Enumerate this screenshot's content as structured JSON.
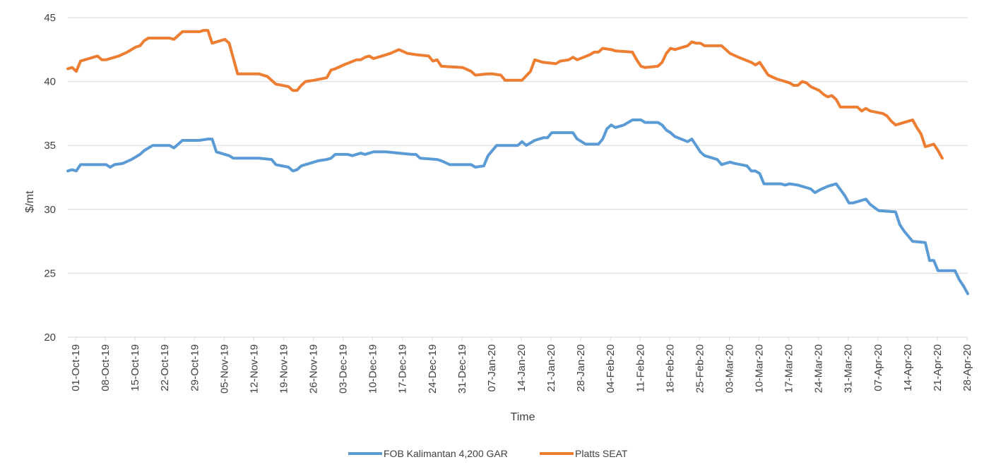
{
  "chart_data": {
    "type": "line",
    "title": "",
    "xlabel": "Time",
    "ylabel": "$/mt",
    "ylim": [
      20,
      45
    ],
    "yticks": [
      "20",
      "25",
      "30",
      "35",
      "40",
      "45"
    ],
    "grid": "horizontal",
    "legend_position": "bottom",
    "x_tick_labels": [
      "01-Oct-19",
      "08-Oct-19",
      "15-Oct-19",
      "22-Oct-19",
      "29-Oct-19",
      "05-Nov-19",
      "12-Nov-19",
      "19-Nov-19",
      "26-Nov-19",
      "03-Dec-19",
      "10-Dec-19",
      "17-Dec-19",
      "24-Dec-19",
      "31-Dec-19",
      "07-Jan-20",
      "14-Jan-20",
      "21-Jan-20",
      "28-Jan-20",
      "04-Feb-20",
      "11-Feb-20",
      "18-Feb-20",
      "25-Feb-20",
      "03-Mar-20",
      "10-Mar-20",
      "17-Mar-20",
      "24-Mar-20",
      "31-Mar-20",
      "07-Apr-20",
      "14-Apr-20",
      "21-Apr-20",
      "28-Apr-20"
    ],
    "x_start": "2019-10-01",
    "x_end": "2020-04-30",
    "series": [
      {
        "name": "FOB Kalimantan 4,200 GAR",
        "color": "#5b9bd5",
        "points": [
          [
            "2019-10-01",
            33.0
          ],
          [
            "2019-10-02",
            33.1
          ],
          [
            "2019-10-03",
            33.0
          ],
          [
            "2019-10-04",
            33.5
          ],
          [
            "2019-10-07",
            33.5
          ],
          [
            "2019-10-10",
            33.5
          ],
          [
            "2019-10-11",
            33.3
          ],
          [
            "2019-10-12",
            33.5
          ],
          [
            "2019-10-14",
            33.6
          ],
          [
            "2019-10-16",
            33.9
          ],
          [
            "2019-10-18",
            34.3
          ],
          [
            "2019-10-19",
            34.6
          ],
          [
            "2019-10-21",
            35.0
          ],
          [
            "2019-10-25",
            35.0
          ],
          [
            "2019-10-26",
            34.8
          ],
          [
            "2019-10-28",
            35.4
          ],
          [
            "2019-11-01",
            35.4
          ],
          [
            "2019-11-03",
            35.5
          ],
          [
            "2019-11-04",
            35.5
          ],
          [
            "2019-11-05",
            34.5
          ],
          [
            "2019-11-07",
            34.3
          ],
          [
            "2019-11-08",
            34.2
          ],
          [
            "2019-11-09",
            34.0
          ],
          [
            "2019-11-15",
            34.0
          ],
          [
            "2019-11-18",
            33.9
          ],
          [
            "2019-11-19",
            33.5
          ],
          [
            "2019-11-22",
            33.3
          ],
          [
            "2019-11-23",
            33.0
          ],
          [
            "2019-11-24",
            33.1
          ],
          [
            "2019-11-25",
            33.4
          ],
          [
            "2019-11-27",
            33.6
          ],
          [
            "2019-11-29",
            33.8
          ],
          [
            "2019-12-01",
            33.9
          ],
          [
            "2019-12-02",
            34.0
          ],
          [
            "2019-12-03",
            34.3
          ],
          [
            "2019-12-06",
            34.3
          ],
          [
            "2019-12-07",
            34.2
          ],
          [
            "2019-12-09",
            34.4
          ],
          [
            "2019-12-10",
            34.3
          ],
          [
            "2019-12-12",
            34.5
          ],
          [
            "2019-12-15",
            34.5
          ],
          [
            "2019-12-18",
            34.4
          ],
          [
            "2019-12-21",
            34.3
          ],
          [
            "2019-12-22",
            34.3
          ],
          [
            "2019-12-23",
            34.0
          ],
          [
            "2019-12-27",
            33.9
          ],
          [
            "2019-12-28",
            33.8
          ],
          [
            "2019-12-30",
            33.5
          ],
          [
            "2020-01-04",
            33.5
          ],
          [
            "2020-01-05",
            33.3
          ],
          [
            "2020-01-07",
            33.4
          ],
          [
            "2020-01-08",
            34.2
          ],
          [
            "2020-01-10",
            35.0
          ],
          [
            "2020-01-14",
            35.0
          ],
          [
            "2020-01-15",
            35.0
          ],
          [
            "2020-01-16",
            35.3
          ],
          [
            "2020-01-17",
            35.0
          ],
          [
            "2020-01-19",
            35.4
          ],
          [
            "2020-01-21",
            35.6
          ],
          [
            "2020-01-22",
            35.6
          ],
          [
            "2020-01-23",
            36.0
          ],
          [
            "2020-01-28",
            36.0
          ],
          [
            "2020-01-29",
            35.5
          ],
          [
            "2020-01-31",
            35.1
          ],
          [
            "2020-02-03",
            35.1
          ],
          [
            "2020-02-04",
            35.5
          ],
          [
            "2020-02-05",
            36.3
          ],
          [
            "2020-02-06",
            36.6
          ],
          [
            "2020-02-07",
            36.4
          ],
          [
            "2020-02-09",
            36.6
          ],
          [
            "2020-02-10",
            36.8
          ],
          [
            "2020-02-11",
            37.0
          ],
          [
            "2020-02-13",
            37.0
          ],
          [
            "2020-02-14",
            36.8
          ],
          [
            "2020-02-17",
            36.8
          ],
          [
            "2020-02-18",
            36.6
          ],
          [
            "2020-02-19",
            36.2
          ],
          [
            "2020-02-20",
            36.0
          ],
          [
            "2020-02-21",
            35.7
          ],
          [
            "2020-02-24",
            35.3
          ],
          [
            "2020-02-25",
            35.5
          ],
          [
            "2020-02-26",
            35.0
          ],
          [
            "2020-02-27",
            34.5
          ],
          [
            "2020-02-28",
            34.2
          ],
          [
            "2020-03-02",
            33.9
          ],
          [
            "2020-03-03",
            33.5
          ],
          [
            "2020-03-04",
            33.6
          ],
          [
            "2020-03-05",
            33.7
          ],
          [
            "2020-03-06",
            33.6
          ],
          [
            "2020-03-09",
            33.4
          ],
          [
            "2020-03-10",
            33.0
          ],
          [
            "2020-03-11",
            33.0
          ],
          [
            "2020-03-12",
            32.8
          ],
          [
            "2020-03-13",
            32.0
          ],
          [
            "2020-03-17",
            32.0
          ],
          [
            "2020-03-18",
            31.9
          ],
          [
            "2020-03-19",
            32.0
          ],
          [
            "2020-03-21",
            31.9
          ],
          [
            "2020-03-24",
            31.6
          ],
          [
            "2020-03-25",
            31.3
          ],
          [
            "2020-03-26",
            31.5
          ],
          [
            "2020-03-28",
            31.8
          ],
          [
            "2020-03-30",
            32.0
          ],
          [
            "2020-04-01",
            31.1
          ],
          [
            "2020-04-02",
            30.5
          ],
          [
            "2020-04-03",
            30.5
          ],
          [
            "2020-04-06",
            30.8
          ],
          [
            "2020-04-07",
            30.4
          ],
          [
            "2020-04-09",
            29.9
          ],
          [
            "2020-04-13",
            29.8
          ],
          [
            "2020-04-14",
            28.8
          ],
          [
            "2020-04-15",
            28.3
          ],
          [
            "2020-04-16",
            27.9
          ],
          [
            "2020-04-17",
            27.5
          ],
          [
            "2020-04-20",
            27.4
          ],
          [
            "2020-04-21",
            26.0
          ],
          [
            "2020-04-22",
            26.0
          ],
          [
            "2020-04-23",
            25.2
          ],
          [
            "2020-04-27",
            25.2
          ],
          [
            "2020-04-28",
            24.5
          ],
          [
            "2020-04-29",
            24.0
          ],
          [
            "2020-04-30",
            23.4
          ]
        ]
      },
      {
        "name": "Platts SEAT",
        "color": "#ed7d31",
        "points": [
          [
            "2019-10-01",
            41.0
          ],
          [
            "2019-10-02",
            41.1
          ],
          [
            "2019-10-03",
            40.8
          ],
          [
            "2019-10-04",
            41.6
          ],
          [
            "2019-10-07",
            41.9
          ],
          [
            "2019-10-08",
            42.0
          ],
          [
            "2019-10-09",
            41.7
          ],
          [
            "2019-10-10",
            41.7
          ],
          [
            "2019-10-11",
            41.8
          ],
          [
            "2019-10-13",
            42.0
          ],
          [
            "2019-10-15",
            42.3
          ],
          [
            "2019-10-17",
            42.7
          ],
          [
            "2019-10-18",
            42.8
          ],
          [
            "2019-10-19",
            43.2
          ],
          [
            "2019-10-20",
            43.4
          ],
          [
            "2019-10-25",
            43.4
          ],
          [
            "2019-10-26",
            43.3
          ],
          [
            "2019-10-28",
            43.9
          ],
          [
            "2019-11-01",
            43.9
          ],
          [
            "2019-11-02",
            44.0
          ],
          [
            "2019-11-03",
            44.0
          ],
          [
            "2019-11-04",
            43.0
          ],
          [
            "2019-11-05",
            43.1
          ],
          [
            "2019-11-07",
            43.3
          ],
          [
            "2019-11-08",
            43.0
          ],
          [
            "2019-11-10",
            40.6
          ],
          [
            "2019-11-15",
            40.6
          ],
          [
            "2019-11-17",
            40.4
          ],
          [
            "2019-11-19",
            39.8
          ],
          [
            "2019-11-22",
            39.6
          ],
          [
            "2019-11-23",
            39.3
          ],
          [
            "2019-11-24",
            39.3
          ],
          [
            "2019-11-25",
            39.7
          ],
          [
            "2019-11-26",
            40.0
          ],
          [
            "2019-11-28",
            40.1
          ],
          [
            "2019-12-01",
            40.3
          ],
          [
            "2019-12-02",
            40.9
          ],
          [
            "2019-12-03",
            41.0
          ],
          [
            "2019-12-05",
            41.3
          ],
          [
            "2019-12-08",
            41.7
          ],
          [
            "2019-12-09",
            41.7
          ],
          [
            "2019-12-10",
            41.9
          ],
          [
            "2019-12-11",
            42.0
          ],
          [
            "2019-12-12",
            41.8
          ],
          [
            "2019-12-14",
            42.0
          ],
          [
            "2019-12-16",
            42.2
          ],
          [
            "2019-12-18",
            42.5
          ],
          [
            "2019-12-20",
            42.2
          ],
          [
            "2019-12-22",
            42.1
          ],
          [
            "2019-12-25",
            42.0
          ],
          [
            "2019-12-26",
            41.6
          ],
          [
            "2019-12-27",
            41.7
          ],
          [
            "2019-12-28",
            41.2
          ],
          [
            "2020-01-02",
            41.1
          ],
          [
            "2020-01-04",
            40.8
          ],
          [
            "2020-01-05",
            40.5
          ],
          [
            "2020-01-08",
            40.6
          ],
          [
            "2020-01-09",
            40.6
          ],
          [
            "2020-01-11",
            40.5
          ],
          [
            "2020-01-12",
            40.1
          ],
          [
            "2020-01-16",
            40.1
          ],
          [
            "2020-01-18",
            40.8
          ],
          [
            "2020-01-19",
            41.7
          ],
          [
            "2020-01-21",
            41.5
          ],
          [
            "2020-01-24",
            41.4
          ],
          [
            "2020-01-25",
            41.6
          ],
          [
            "2020-01-27",
            41.7
          ],
          [
            "2020-01-28",
            41.9
          ],
          [
            "2020-01-29",
            41.7
          ],
          [
            "2020-02-01",
            42.1
          ],
          [
            "2020-02-02",
            42.3
          ],
          [
            "2020-02-03",
            42.3
          ],
          [
            "2020-02-04",
            42.6
          ],
          [
            "2020-02-06",
            42.5
          ],
          [
            "2020-02-07",
            42.4
          ],
          [
            "2020-02-11",
            42.3
          ],
          [
            "2020-02-12",
            41.7
          ],
          [
            "2020-02-13",
            41.2
          ],
          [
            "2020-02-14",
            41.1
          ],
          [
            "2020-02-17",
            41.2
          ],
          [
            "2020-02-18",
            41.5
          ],
          [
            "2020-02-19",
            42.2
          ],
          [
            "2020-02-20",
            42.6
          ],
          [
            "2020-02-21",
            42.5
          ],
          [
            "2020-02-23",
            42.7
          ],
          [
            "2020-02-24",
            42.8
          ],
          [
            "2020-02-25",
            43.1
          ],
          [
            "2020-02-26",
            43.0
          ],
          [
            "2020-02-27",
            43.0
          ],
          [
            "2020-02-28",
            42.8
          ],
          [
            "2020-03-03",
            42.8
          ],
          [
            "2020-03-04",
            42.5
          ],
          [
            "2020-03-05",
            42.2
          ],
          [
            "2020-03-07",
            41.9
          ],
          [
            "2020-03-10",
            41.5
          ],
          [
            "2020-03-11",
            41.3
          ],
          [
            "2020-03-12",
            41.5
          ],
          [
            "2020-03-13",
            41.0
          ],
          [
            "2020-03-14",
            40.5
          ],
          [
            "2020-03-16",
            40.2
          ],
          [
            "2020-03-18",
            40.0
          ],
          [
            "2020-03-19",
            39.9
          ],
          [
            "2020-03-20",
            39.7
          ],
          [
            "2020-03-21",
            39.7
          ],
          [
            "2020-03-22",
            40.0
          ],
          [
            "2020-03-23",
            39.9
          ],
          [
            "2020-03-24",
            39.6
          ],
          [
            "2020-03-26",
            39.3
          ],
          [
            "2020-03-27",
            39.0
          ],
          [
            "2020-03-28",
            38.8
          ],
          [
            "2020-03-29",
            38.9
          ],
          [
            "2020-03-30",
            38.6
          ],
          [
            "2020-03-31",
            38.0
          ],
          [
            "2020-04-04",
            38.0
          ],
          [
            "2020-04-05",
            37.7
          ],
          [
            "2020-04-06",
            37.9
          ],
          [
            "2020-04-07",
            37.7
          ],
          [
            "2020-04-10",
            37.5
          ],
          [
            "2020-04-11",
            37.3
          ],
          [
            "2020-04-12",
            36.9
          ],
          [
            "2020-04-13",
            36.6
          ],
          [
            "2020-04-14",
            36.7
          ],
          [
            "2020-04-15",
            36.8
          ],
          [
            "2020-04-16",
            36.9
          ],
          [
            "2020-04-17",
            37.0
          ],
          [
            "2020-04-18",
            36.4
          ],
          [
            "2020-04-19",
            35.9
          ],
          [
            "2020-04-20",
            34.9
          ],
          [
            "2020-04-22",
            35.1
          ],
          [
            "2020-04-23",
            34.6
          ],
          [
            "2020-04-24",
            34.0
          ]
        ]
      }
    ]
  }
}
